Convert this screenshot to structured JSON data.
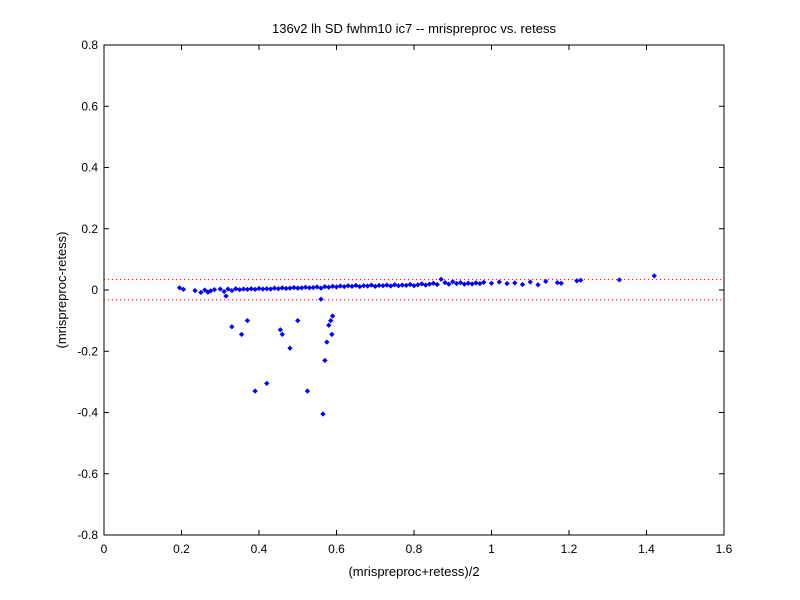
{
  "chart_data": {
    "type": "scatter",
    "title": "136v2 lh SD fwhm10 ic7 -- mrispreproc vs. retess",
    "xlabel": "(mrispreproc+retess)/2",
    "ylabel": "(mrispreproc-retess)",
    "xlim": [
      0,
      1.6
    ],
    "ylim": [
      -0.8,
      0.8
    ],
    "x_ticks": [
      "0",
      "0.2",
      "0.4",
      "0.6",
      "0.8",
      "1",
      "1.2",
      "1.4",
      "1.6"
    ],
    "y_ticks": [
      "0.8",
      "0.6",
      "0.4",
      "0.2",
      "0",
      "-0.2",
      "-0.4",
      "-0.6",
      "-0.8"
    ],
    "grid": false,
    "colors": {
      "points": "#0000ff",
      "reference_lines": "#ff0000"
    },
    "reference_lines": [
      {
        "y": 0.034,
        "style": "dotted"
      },
      {
        "y": -0.032,
        "style": "dotted"
      }
    ],
    "series": [
      {
        "values": [
          [
            0.195,
            0.007
          ],
          [
            0.205,
            0.002
          ],
          [
            0.235,
            -0.002
          ],
          [
            0.25,
            -0.008
          ],
          [
            0.26,
            0.0
          ],
          [
            0.268,
            -0.007
          ],
          [
            0.275,
            -0.003
          ],
          [
            0.285,
            0.001
          ],
          [
            0.3,
            0.003
          ],
          [
            0.31,
            -0.005
          ],
          [
            0.315,
            -0.02
          ],
          [
            0.32,
            0.003
          ],
          [
            0.33,
            -0.002
          ],
          [
            0.34,
            0.004
          ],
          [
            0.35,
            0.001
          ],
          [
            0.36,
            0.003
          ],
          [
            0.37,
            0.002
          ],
          [
            0.38,
            0.004
          ],
          [
            0.39,
            0.002
          ],
          [
            0.4,
            0.005
          ],
          [
            0.41,
            0.003
          ],
          [
            0.42,
            0.004
          ],
          [
            0.43,
            0.003
          ],
          [
            0.44,
            0.006
          ],
          [
            0.45,
            0.004
          ],
          [
            0.46,
            0.007
          ],
          [
            0.47,
            0.005
          ],
          [
            0.48,
            0.006
          ],
          [
            0.49,
            0.008
          ],
          [
            0.5,
            0.006
          ],
          [
            0.51,
            0.007
          ],
          [
            0.52,
            0.009
          ],
          [
            0.53,
            0.007
          ],
          [
            0.54,
            0.008
          ],
          [
            0.55,
            0.01
          ],
          [
            0.56,
            0.006
          ],
          [
            0.57,
            0.011
          ],
          [
            0.58,
            0.009
          ],
          [
            0.59,
            0.012
          ],
          [
            0.6,
            0.01
          ],
          [
            0.61,
            0.013
          ],
          [
            0.62,
            0.011
          ],
          [
            0.63,
            0.014
          ],
          [
            0.64,
            0.012
          ],
          [
            0.65,
            0.015
          ],
          [
            0.66,
            0.011
          ],
          [
            0.67,
            0.014
          ],
          [
            0.68,
            0.013
          ],
          [
            0.69,
            0.016
          ],
          [
            0.7,
            0.012
          ],
          [
            0.71,
            0.015
          ],
          [
            0.72,
            0.014
          ],
          [
            0.73,
            0.016
          ],
          [
            0.74,
            0.013
          ],
          [
            0.75,
            0.017
          ],
          [
            0.76,
            0.014
          ],
          [
            0.77,
            0.016
          ],
          [
            0.78,
            0.015
          ],
          [
            0.79,
            0.018
          ],
          [
            0.8,
            0.014
          ],
          [
            0.81,
            0.017
          ],
          [
            0.82,
            0.02
          ],
          [
            0.83,
            0.016
          ],
          [
            0.84,
            0.019
          ],
          [
            0.85,
            0.022
          ],
          [
            0.86,
            0.018
          ],
          [
            0.87,
            0.035
          ],
          [
            0.88,
            0.024
          ],
          [
            0.89,
            0.019
          ],
          [
            0.9,
            0.027
          ],
          [
            0.91,
            0.021
          ],
          [
            0.92,
            0.024
          ],
          [
            0.93,
            0.019
          ],
          [
            0.94,
            0.022
          ],
          [
            0.95,
            0.02
          ],
          [
            0.96,
            0.023
          ],
          [
            0.97,
            0.021
          ],
          [
            0.98,
            0.025
          ],
          [
            1.0,
            0.022
          ],
          [
            1.02,
            0.026
          ],
          [
            1.04,
            0.021
          ],
          [
            1.06,
            0.023
          ],
          [
            1.08,
            0.018
          ],
          [
            1.1,
            0.026
          ],
          [
            1.12,
            0.017
          ],
          [
            1.14,
            0.028
          ],
          [
            1.17,
            0.024
          ],
          [
            1.18,
            0.022
          ],
          [
            1.22,
            0.03
          ],
          [
            1.23,
            0.032
          ],
          [
            1.33,
            0.033
          ],
          [
            1.42,
            0.046
          ],
          [
            0.33,
            -0.12
          ],
          [
            0.355,
            -0.145
          ],
          [
            0.37,
            -0.1
          ],
          [
            0.39,
            -0.33
          ],
          [
            0.42,
            -0.305
          ],
          [
            0.455,
            -0.13
          ],
          [
            0.46,
            -0.145
          ],
          [
            0.48,
            -0.19
          ],
          [
            0.5,
            -0.1
          ],
          [
            0.525,
            -0.33
          ],
          [
            0.56,
            -0.03
          ],
          [
            0.565,
            -0.405
          ],
          [
            0.57,
            -0.23
          ],
          [
            0.575,
            -0.17
          ],
          [
            0.58,
            -0.115
          ],
          [
            0.585,
            -0.1
          ],
          [
            0.588,
            -0.145
          ],
          [
            0.59,
            -0.085
          ]
        ]
      }
    ]
  }
}
